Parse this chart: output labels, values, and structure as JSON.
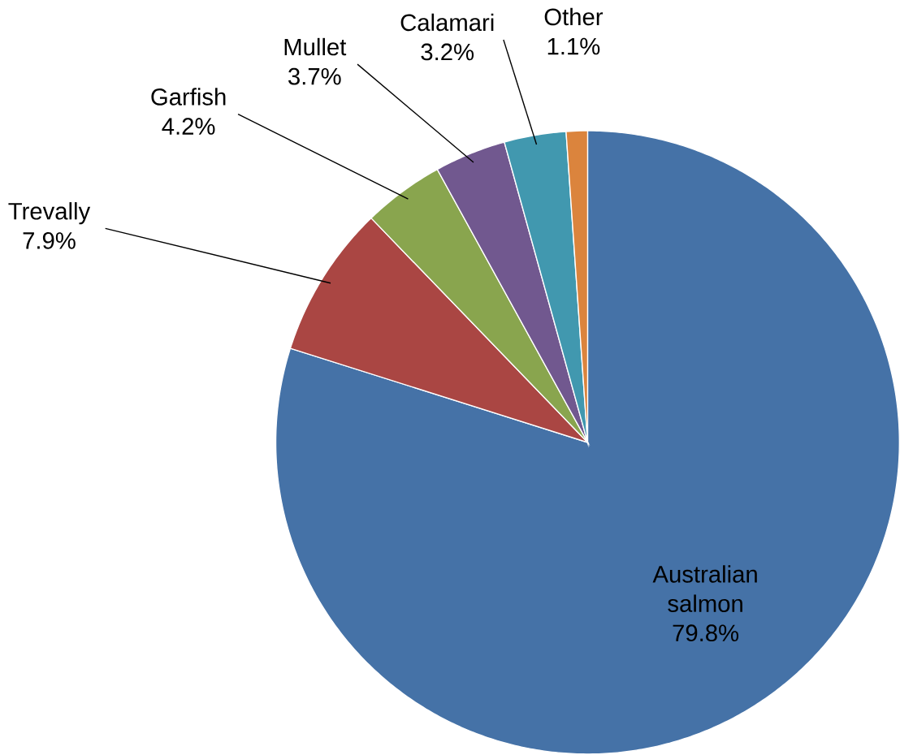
{
  "chart_data": {
    "type": "pie",
    "categories": [
      "Australian salmon",
      "Trevally",
      "Garfish",
      "Mullet",
      "Calamari",
      "Other"
    ],
    "values": [
      79.8,
      7.9,
      4.2,
      3.7,
      3.2,
      1.1
    ],
    "value_labels": [
      "79.8%",
      "7.9%",
      "4.2%",
      "3.7%",
      "3.2%",
      "1.1%"
    ],
    "colors": [
      "#4572a7",
      "#aa4643",
      "#89a54e",
      "#71588f",
      "#4198af",
      "#db843d"
    ]
  }
}
